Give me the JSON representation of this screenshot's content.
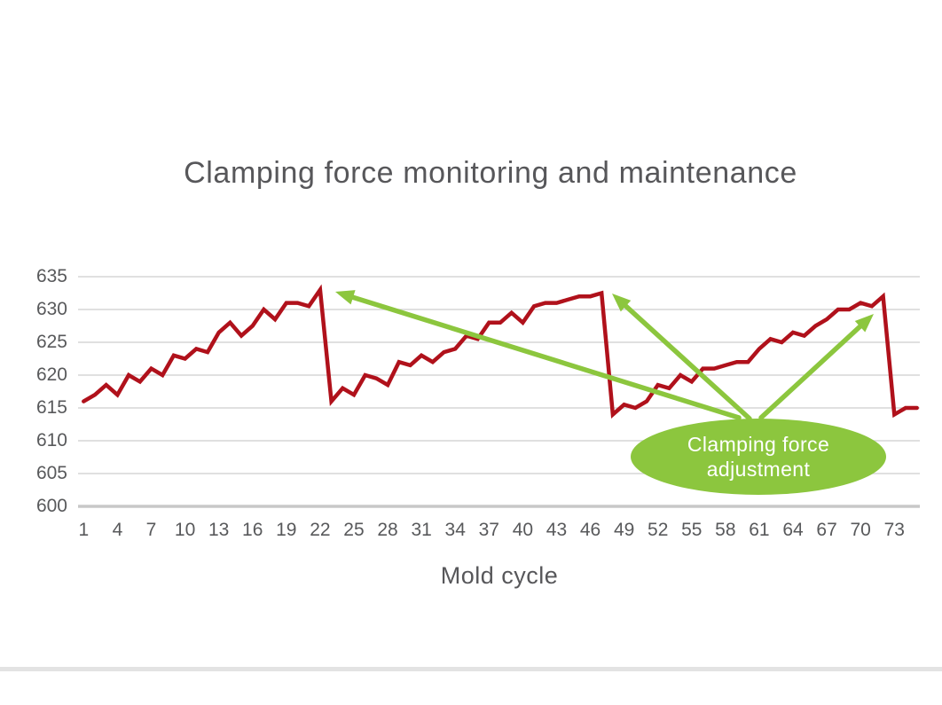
{
  "title": "Clamping force monitoring and maintenance",
  "annotation": {
    "line1": "Clamping force",
    "line2": "adjustment",
    "meaning": "Green arrows point from the label ellipse to the force peaks right before each adjustment drop",
    "target_peak_cycles": [
      22,
      47,
      72
    ],
    "arrows": [
      {
        "from": [
          833,
          471
        ],
        "to": [
          378,
          329
        ]
      },
      {
        "from": [
          845,
          472
        ],
        "to": [
          690,
          331
        ]
      },
      {
        "from": [
          858,
          471
        ],
        "to": [
          985,
          354
        ]
      }
    ]
  },
  "colors": {
    "line": "#b0111b",
    "accent_green": "#8cc63e",
    "grid": "#d6d6d6",
    "axis_line": "#c8c8c8",
    "text": "#58595b",
    "annotation_text": "#ffffff",
    "background": "#ffffff"
  },
  "chart_data": {
    "type": "line",
    "title": "Clamping force monitoring and maintenance",
    "xlabel": "Mold cycle",
    "ylabel": "",
    "ylim": [
      600,
      635
    ],
    "yticks": [
      600,
      605,
      610,
      615,
      620,
      625,
      630,
      635
    ],
    "x_start": 1,
    "x_step": 1,
    "n_points": 75,
    "x_tick_labels": [
      1,
      4,
      7,
      10,
      13,
      16,
      19,
      22,
      25,
      28,
      31,
      34,
      37,
      40,
      43,
      46,
      49,
      52,
      55,
      58,
      61,
      64,
      67,
      70,
      73
    ],
    "grid": "horizontal",
    "legend": "none",
    "series": [
      {
        "name": "Clamping force",
        "values": [
          616,
          617,
          618.5,
          617,
          620,
          619,
          621,
          620,
          623,
          622.5,
          624,
          623.5,
          626.5,
          628,
          626,
          627.5,
          630,
          628.5,
          631,
          631,
          630.5,
          633,
          616,
          618,
          617,
          620,
          619.5,
          618.5,
          622,
          621.5,
          623,
          622,
          623.5,
          624,
          626,
          625.5,
          628,
          628,
          629.5,
          628,
          630.5,
          631,
          631,
          631.5,
          632,
          632,
          632.5,
          614,
          615.5,
          615,
          616,
          618.5,
          618,
          620,
          619,
          621,
          621,
          621.5,
          622,
          622,
          624,
          625.5,
          625,
          626.5,
          626,
          627.5,
          628.5,
          630,
          630,
          631,
          630.5,
          632,
          614,
          615,
          615
        ]
      }
    ]
  }
}
